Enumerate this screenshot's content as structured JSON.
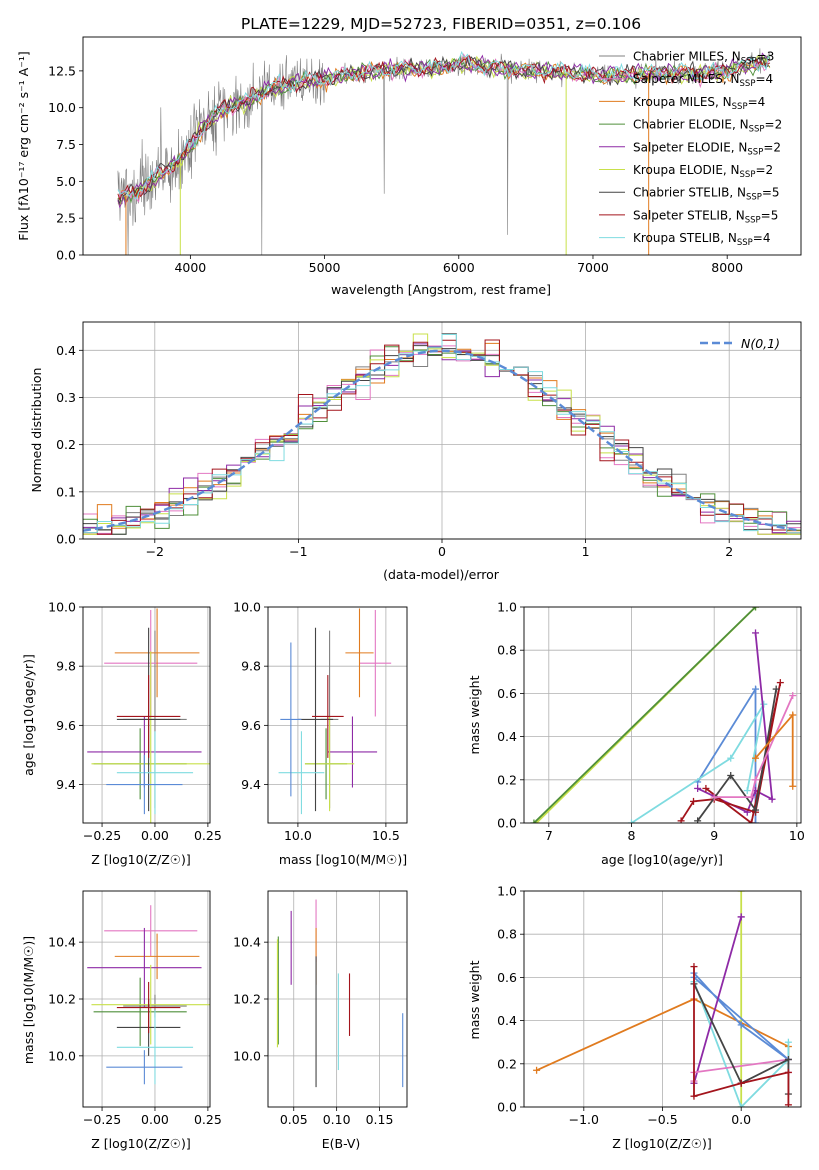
{
  "figure_title": "PLATE=1229, MJD=52723, FIBERID=0351, z=0.106",
  "models": [
    {
      "name": "Chabrier MILES",
      "nssp": "3",
      "color": "#808080"
    },
    {
      "name": "Salpeter MILES",
      "nssp": "4",
      "color": "#e377c2"
    },
    {
      "name": "Kroupa MILES",
      "nssp": "4",
      "color": "#e07b1f"
    },
    {
      "name": "Chabrier ELODIE",
      "nssp": "2",
      "color": "#4f8f3a"
    },
    {
      "name": "Salpeter ELODIE",
      "nssp": "2",
      "color": "#8e2aa6"
    },
    {
      "name": "Kroupa ELODIE",
      "nssp": "2",
      "color": "#c8e04a"
    },
    {
      "name": "Chabrier STELIB",
      "nssp": "5",
      "color": "#444444"
    },
    {
      "name": "Salpeter STELIB",
      "nssp": "5",
      "color": "#a3141c"
    },
    {
      "name": "Kroupa STELIB",
      "nssp": "4",
      "color": "#7fdbe0"
    }
  ],
  "chart_data": [
    {
      "id": "spectrum",
      "type": "line",
      "xlabel": "wavelength [Angstrom, rest frame]",
      "ylabel": "Flux [fλ10⁻¹⁷ erg cm⁻² s⁻¹ A⁻¹]",
      "xlim": [
        3200,
        8550
      ],
      "ylim": [
        0,
        14.8
      ],
      "xticks": [
        4000,
        5000,
        6000,
        7000,
        8000
      ],
      "xtick_labels": [
        "4000",
        "5000",
        "6000",
        "7000",
        "8000"
      ],
      "yticks": [
        0,
        2.5,
        5,
        7.5,
        10,
        12.5
      ],
      "ytick_labels": [
        "0.0",
        "2.5",
        "5.0",
        "7.5",
        "10.0",
        "12.5"
      ],
      "continuum": {
        "x": [
          3450,
          3600,
          3700,
          3800,
          3900,
          4000,
          4100,
          4200,
          4300,
          4400,
          4500,
          4600,
          4800,
          5000,
          5200,
          5500,
          5800,
          6000,
          6200,
          6500,
          6800,
          7000,
          7200,
          7500,
          7800,
          8000,
          8300
        ],
        "y": [
          3.8,
          4.3,
          4.9,
          5.7,
          6.3,
          7.4,
          8.8,
          9.6,
          10.2,
          10.3,
          10.8,
          11.3,
          11.7,
          12.0,
          12.3,
          12.6,
          12.7,
          13.0,
          12.8,
          12.5,
          12.4,
          12.2,
          12.2,
          12.4,
          12.3,
          12.5,
          13.2
        ]
      }
    },
    {
      "id": "residual_histogram",
      "type": "bar",
      "xlabel": "(data-model)/error",
      "ylabel": "Normed distribution",
      "xlim": [
        -2.5,
        2.5
      ],
      "ylim": [
        0,
        0.46
      ],
      "xticks": [
        -2,
        -1,
        0,
        1,
        2
      ],
      "xtick_labels": [
        "−2",
        "−1",
        "0",
        "1",
        "2"
      ],
      "yticks": [
        0,
        0.1,
        0.2,
        0.3,
        0.4
      ],
      "ytick_labels": [
        "0.0",
        "0.1",
        "0.2",
        "0.3",
        "0.4"
      ],
      "bin_width": 0.1,
      "reference_label": "N(0,1)",
      "reference_color": "#5b8bd6"
    },
    {
      "id": "age_vs_Z",
      "type": "scatter",
      "xlabel": "Z [log10(Z/Z☉)]",
      "ylabel": "age  [log10(age/yr)]",
      "xlim": [
        -0.34,
        0.26
      ],
      "ylim": [
        9.27,
        10.0
      ],
      "xticks": [
        -0.25,
        0,
        0.25
      ],
      "xtick_labels": [
        "−0.25",
        "0.00",
        "0.25"
      ],
      "yticks": [
        9.4,
        9.6,
        9.8,
        10.0
      ],
      "ytick_labels": [
        "9.4",
        "9.6",
        "9.8",
        "10.0"
      ],
      "points": [
        {
          "x": 0.0,
          "y": 9.62,
          "xerr": 0.15,
          "yerr": 0.3,
          "color": "#808080"
        },
        {
          "x": -0.02,
          "y": 9.81,
          "xerr": 0.22,
          "yerr": 0.18,
          "color": "#e377c2"
        },
        {
          "x": 0.01,
          "y": 9.845,
          "xerr": 0.2,
          "yerr": 0.15,
          "color": "#e07b1f"
        },
        {
          "x": -0.07,
          "y": 9.47,
          "xerr": 0.22,
          "yerr": 0.12,
          "color": "#4f8f3a"
        },
        {
          "x": -0.05,
          "y": 9.51,
          "xerr": 0.27,
          "yerr": 0.12,
          "color": "#8e2aa6"
        },
        {
          "x": -0.02,
          "y": 9.47,
          "xerr": 0.28,
          "yerr": 0.38,
          "color": "#c8e04a"
        },
        {
          "x": -0.03,
          "y": 9.62,
          "xerr": 0.15,
          "yerr": 0.31,
          "color": "#444444"
        },
        {
          "x": -0.03,
          "y": 9.63,
          "xerr": 0.15,
          "yerr": 0.14,
          "color": "#a3141c"
        },
        {
          "x": 0.0,
          "y": 9.44,
          "xerr": 0.18,
          "yerr": 0.14,
          "color": "#7fdbe0"
        },
        {
          "x": -0.05,
          "y": 9.4,
          "xerr": 0.18,
          "yerr": 0.1,
          "color": "#5b8bd6"
        }
      ]
    },
    {
      "id": "age_vs_mass",
      "type": "scatter",
      "xlabel": "mass [log10(M/M☉)]",
      "ylabel": "",
      "xlim": [
        9.83,
        10.62
      ],
      "ylim": [
        9.27,
        10.0
      ],
      "xticks": [
        10.0,
        10.5
      ],
      "xtick_labels": [
        "10.0",
        "10.5"
      ],
      "yticks": [
        9.4,
        9.6,
        9.8,
        10.0
      ],
      "ytick_labels": [
        "9.4",
        "9.6",
        "9.8",
        "10.0"
      ],
      "points": [
        {
          "x": 10.18,
          "y": 9.62,
          "xerr": 0.05,
          "yerr": 0.3,
          "color": "#808080"
        },
        {
          "x": 10.44,
          "y": 9.81,
          "xerr": 0.09,
          "yerr": 0.18,
          "color": "#e377c2"
        },
        {
          "x": 10.35,
          "y": 9.845,
          "xerr": 0.08,
          "yerr": 0.15,
          "color": "#e07b1f"
        },
        {
          "x": 10.16,
          "y": 9.47,
          "xerr": 0.12,
          "yerr": 0.12,
          "color": "#4f8f3a"
        },
        {
          "x": 10.31,
          "y": 9.51,
          "xerr": 0.14,
          "yerr": 0.12,
          "color": "#8e2aa6"
        },
        {
          "x": 10.18,
          "y": 9.47,
          "xerr": 0.14,
          "yerr": 0.16,
          "color": "#c8e04a"
        },
        {
          "x": 10.1,
          "y": 9.62,
          "xerr": 0.1,
          "yerr": 0.31,
          "color": "#444444"
        },
        {
          "x": 10.17,
          "y": 9.63,
          "xerr": 0.09,
          "yerr": 0.14,
          "color": "#a3141c"
        },
        {
          "x": 10.02,
          "y": 9.44,
          "xerr": 0.13,
          "yerr": 0.14,
          "color": "#7fdbe0"
        },
        {
          "x": 9.96,
          "y": 9.62,
          "xerr": 0.06,
          "yerr": 0.26,
          "color": "#5b8bd6"
        }
      ]
    },
    {
      "id": "weight_vs_age",
      "type": "line",
      "xlabel": "age  [log10(age/yr)]",
      "ylabel": "mass weight",
      "xlim": [
        6.7,
        10.05
      ],
      "ylim": [
        0,
        1.0
      ],
      "xticks": [
        7,
        8,
        9,
        10
      ],
      "xtick_labels": [
        "7",
        "8",
        "9",
        "10"
      ],
      "yticks": [
        0,
        0.2,
        0.4,
        0.6,
        0.8,
        1.0
      ],
      "ytick_labels": [
        "0.0",
        "0.2",
        "0.4",
        "0.6",
        "0.8",
        "1.0"
      ],
      "series": [
        {
          "color": "#c8e04a",
          "x": [
            6.85,
            9.5
          ],
          "y": [
            0.0,
            1.0
          ]
        },
        {
          "color": "#4f8f3a",
          "x": [
            6.82,
            9.5
          ],
          "y": [
            0.0,
            1.0
          ]
        },
        {
          "color": "#5b8bd6",
          "x": [
            8.8,
            9.5,
            9.5
          ],
          "y": [
            0.19,
            0.62,
            0.0
          ]
        },
        {
          "color": "#7fdbe0",
          "x": [
            8.0,
            9.2,
            9.6,
            9.4
          ],
          "y": [
            0.0,
            0.3,
            0.55,
            0.15
          ]
        },
        {
          "color": "#8e2aa6",
          "x": [
            9.5,
            9.7,
            9.5,
            9.4,
            8.8
          ],
          "y": [
            0.88,
            0.11,
            0.15,
            0.05,
            0.16
          ]
        },
        {
          "color": "#a3141c",
          "x": [
            8.6,
            8.75,
            9.0,
            9.5,
            9.8,
            9.45,
            8.9
          ],
          "y": [
            0.01,
            0.1,
            0.11,
            0.05,
            0.65,
            0.0,
            0.16
          ]
        },
        {
          "color": "#444444",
          "x": [
            8.8,
            9.2,
            9.5,
            9.75
          ],
          "y": [
            0.01,
            0.22,
            0.06,
            0.62
          ]
        },
        {
          "color": "#e377c2",
          "x": [
            9.0,
            9.45,
            9.5,
            9.95
          ],
          "y": [
            0.12,
            0.12,
            0.2,
            0.59
          ]
        },
        {
          "color": "#e07b1f",
          "x": [
            9.5,
            9.95,
            9.95
          ],
          "y": [
            0.3,
            0.5,
            0.17
          ]
        }
      ]
    },
    {
      "id": "mass_vs_Z",
      "type": "scatter",
      "xlabel": "Z [log10(Z/Z☉)]",
      "ylabel": "mass [log10(M/M☉)]",
      "xlim": [
        -0.34,
        0.26
      ],
      "ylim": [
        9.82,
        10.58
      ],
      "xticks": [
        -0.25,
        0,
        0.25
      ],
      "xtick_labels": [
        "−0.25",
        "0.00",
        "0.25"
      ],
      "yticks": [
        10.0,
        10.2,
        10.4
      ],
      "ytick_labels": [
        "10.0",
        "10.2",
        "10.4"
      ],
      "points": [
        {
          "x": 0.0,
          "y": 10.175,
          "xerr": 0.15,
          "yerr": 0.04,
          "color": "#808080"
        },
        {
          "x": -0.02,
          "y": 10.44,
          "xerr": 0.22,
          "yerr": 0.09,
          "color": "#e377c2"
        },
        {
          "x": 0.01,
          "y": 10.35,
          "xerr": 0.2,
          "yerr": 0.08,
          "color": "#e07b1f"
        },
        {
          "x": -0.07,
          "y": 10.155,
          "xerr": 0.22,
          "yerr": 0.12,
          "color": "#4f8f3a"
        },
        {
          "x": -0.05,
          "y": 10.31,
          "xerr": 0.27,
          "yerr": 0.14,
          "color": "#8e2aa6"
        },
        {
          "x": -0.02,
          "y": 10.18,
          "xerr": 0.28,
          "yerr": 0.14,
          "color": "#c8e04a"
        },
        {
          "x": -0.03,
          "y": 10.1,
          "xerr": 0.15,
          "yerr": 0.1,
          "color": "#444444"
        },
        {
          "x": -0.03,
          "y": 10.17,
          "xerr": 0.15,
          "yerr": 0.09,
          "color": "#a3141c"
        },
        {
          "x": 0.0,
          "y": 10.03,
          "xerr": 0.18,
          "yerr": 0.13,
          "color": "#7fdbe0"
        },
        {
          "x": -0.05,
          "y": 9.96,
          "xerr": 0.18,
          "yerr": 0.06,
          "color": "#5b8bd6"
        }
      ]
    },
    {
      "id": "mass_vs_EBV",
      "type": "scatter",
      "xlabel": "E(B-V)",
      "ylabel": "",
      "xlim": [
        0.02,
        0.182
      ],
      "ylim": [
        9.82,
        10.58
      ],
      "xticks": [
        0.05,
        0.1,
        0.15
      ],
      "xtick_labels": [
        "0.05",
        "0.10",
        "0.15"
      ],
      "yticks": [
        10.0,
        10.2,
        10.4
      ],
      "ytick_labels": [
        "10.0",
        "10.2",
        "10.4"
      ],
      "points": [
        {
          "x": 0.076,
          "y": 10.44,
          "yerr": 0.11,
          "color": "#e377c2"
        },
        {
          "x": 0.076,
          "y": 10.35,
          "yerr": 0.1,
          "color": "#e07b1f"
        },
        {
          "x": 0.032,
          "y": 10.23,
          "yerr": 0.19,
          "color": "#4f8f3a"
        },
        {
          "x": 0.047,
          "y": 10.38,
          "yerr": 0.13,
          "color": "#8e2aa6"
        },
        {
          "x": 0.031,
          "y": 10.22,
          "yerr": 0.19,
          "color": "#c8e04a"
        },
        {
          "x": 0.076,
          "y": 10.12,
          "yerr": 0.23,
          "color": "#444444"
        },
        {
          "x": 0.115,
          "y": 10.18,
          "yerr": 0.11,
          "color": "#a3141c"
        },
        {
          "x": 0.102,
          "y": 10.12,
          "yerr": 0.17,
          "color": "#7fdbe0"
        },
        {
          "x": 0.177,
          "y": 10.02,
          "yerr": 0.13,
          "color": "#5b8bd6"
        }
      ]
    },
    {
      "id": "weight_vs_Z",
      "type": "line",
      "xlabel": "Z [log10(Z/Z☉)]",
      "ylabel": "mass weight",
      "xlim": [
        -1.38,
        0.38
      ],
      "ylim": [
        0,
        1.0
      ],
      "xticks": [
        -1.0,
        -0.5,
        0.0
      ],
      "xtick_labels": [
        "−1.0",
        "−0.5",
        "0.0"
      ],
      "yticks": [
        0,
        0.2,
        0.4,
        0.6,
        0.8,
        1.0
      ],
      "ytick_labels": [
        "0.0",
        "0.2",
        "0.4",
        "0.6",
        "0.8",
        "1.0"
      ],
      "series": [
        {
          "color": "#c8e04a",
          "x": [
            0.0,
            0.0
          ],
          "y": [
            0.0,
            1.0
          ]
        },
        {
          "color": "#e07b1f",
          "x": [
            -1.3,
            -0.3,
            0.3,
            0.3
          ],
          "y": [
            0.17,
            0.5,
            0.28,
            0.22
          ]
        },
        {
          "color": "#5b8bd6",
          "x": [
            -0.3,
            0.0,
            0.3,
            -0.3
          ],
          "y": [
            0.62,
            0.38,
            0.22,
            0.6
          ]
        },
        {
          "color": "#7fdbe0",
          "x": [
            -0.3,
            0.0,
            0.3,
            0.3
          ],
          "y": [
            0.58,
            0.0,
            0.22,
            0.3
          ]
        },
        {
          "color": "#8e2aa6",
          "x": [
            -0.3,
            0.0,
            0.0
          ],
          "y": [
            0.11,
            0.88,
            0.88
          ]
        },
        {
          "color": "#e377c2",
          "x": [
            -0.3,
            -0.3,
            0.3,
            0.3
          ],
          "y": [
            0.12,
            0.16,
            0.22,
            0.16
          ]
        },
        {
          "color": "#444444",
          "x": [
            -0.3,
            0.0,
            0.3,
            0.3
          ],
          "y": [
            0.57,
            0.11,
            0.22,
            0.06
          ]
        },
        {
          "color": "#a3141c",
          "x": [
            -0.3,
            -0.3,
            0.0,
            0.3,
            0.3
          ],
          "y": [
            0.65,
            0.05,
            0.11,
            0.16,
            0.01
          ]
        }
      ]
    }
  ]
}
